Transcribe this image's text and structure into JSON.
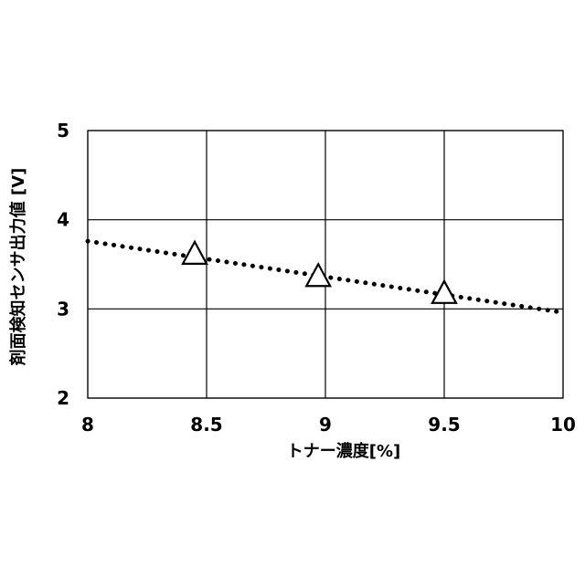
{
  "chart_data": {
    "type": "scatter",
    "title": "",
    "xlabel": "トナー濃度[%]",
    "ylabel": "剤面検知センサ出力値 [V]",
    "xlim": [
      8,
      10
    ],
    "ylim": [
      2,
      5
    ],
    "x_ticks": [
      "8",
      "8.5",
      "9",
      "9.5",
      "10"
    ],
    "y_ticks": [
      "2",
      "3",
      "4",
      "5"
    ],
    "grid": true,
    "legend": "none",
    "series": [
      {
        "marker": "triangle-open",
        "color": "#000000",
        "points": [
          {
            "x": 8.45,
            "y": 3.6
          },
          {
            "x": 8.97,
            "y": 3.35
          },
          {
            "x": 9.5,
            "y": 3.16
          }
        ]
      }
    ],
    "trendline": {
      "style": "dotted",
      "kind": "linear",
      "color": "#000000",
      "x": [
        8,
        10
      ],
      "y": [
        3.76,
        2.96
      ]
    }
  }
}
